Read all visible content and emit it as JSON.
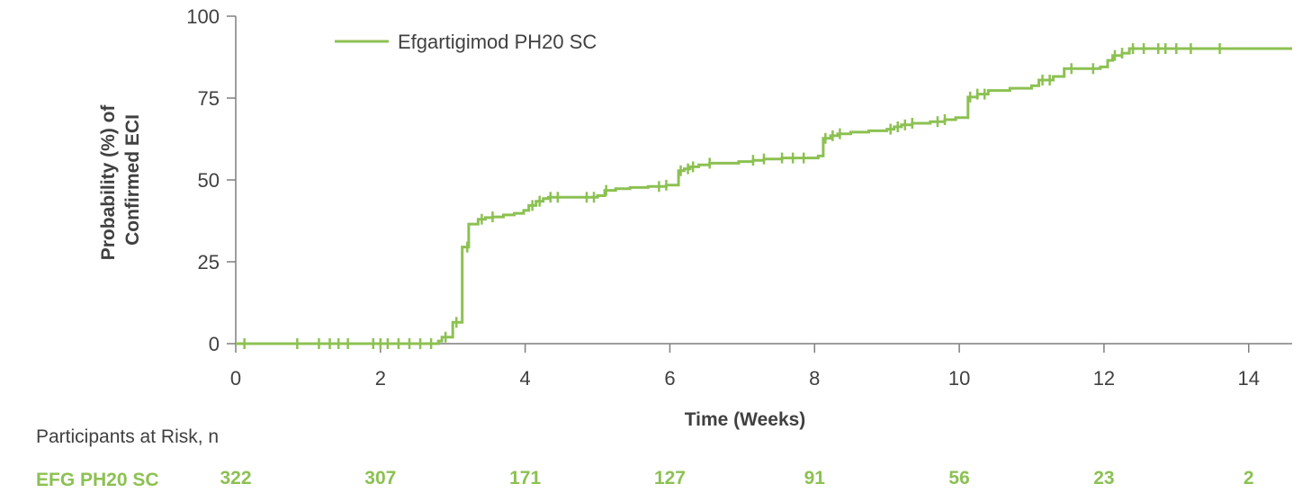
{
  "chart_data": {
    "type": "line",
    "subtype": "kaplan-meier-step",
    "title": "",
    "xlabel": "Time (Weeks)",
    "ylabel_lines": [
      "Probability (%) of",
      "Confirmed ECI"
    ],
    "xlim": [
      0,
      14.6
    ],
    "ylim": [
      0,
      100
    ],
    "xticks": [
      0,
      2,
      4,
      6,
      8,
      10,
      12,
      14
    ],
    "yticks": [
      0,
      25,
      50,
      75,
      100
    ],
    "grid": false,
    "legend_position": "top-left",
    "colors": {
      "series": "#8cc152",
      "text": "#404040",
      "axis": "#7f7f7f"
    },
    "series": [
      {
        "name": "Efgartigimod PH20 SC",
        "steps": [
          [
            0,
            0
          ],
          [
            2.8,
            0
          ],
          [
            2.8,
            0.8
          ],
          [
            2.85,
            0.8
          ],
          [
            2.85,
            2
          ],
          [
            3.0,
            2
          ],
          [
            3.0,
            6.5
          ],
          [
            3.13,
            6.5
          ],
          [
            3.13,
            29.5
          ],
          [
            3.22,
            29.5
          ],
          [
            3.22,
            36.5
          ],
          [
            3.35,
            36.5
          ],
          [
            3.35,
            38
          ],
          [
            3.45,
            38
          ],
          [
            3.45,
            38.5
          ],
          [
            3.55,
            38.5
          ],
          [
            3.55,
            38.7
          ],
          [
            3.7,
            38.7
          ],
          [
            3.7,
            39.3
          ],
          [
            3.85,
            39.3
          ],
          [
            3.85,
            39.8
          ],
          [
            3.98,
            39.8
          ],
          [
            3.98,
            40.7
          ],
          [
            4.05,
            40.7
          ],
          [
            4.05,
            42.2
          ],
          [
            4.15,
            42.2
          ],
          [
            4.15,
            43.5
          ],
          [
            4.25,
            43.5
          ],
          [
            4.25,
            44.3
          ],
          [
            4.32,
            44.3
          ],
          [
            4.32,
            44.7
          ],
          [
            5.0,
            44.7
          ],
          [
            5.0,
            45.2
          ],
          [
            5.1,
            45.2
          ],
          [
            5.1,
            46.8
          ],
          [
            5.25,
            46.8
          ],
          [
            5.25,
            47.3
          ],
          [
            5.45,
            47.3
          ],
          [
            5.45,
            47.7
          ],
          [
            5.7,
            47.7
          ],
          [
            5.7,
            48.0
          ],
          [
            5.95,
            48.0
          ],
          [
            5.95,
            48.4
          ],
          [
            6.12,
            48.4
          ],
          [
            6.12,
            52.8
          ],
          [
            6.2,
            52.8
          ],
          [
            6.2,
            53.4
          ],
          [
            6.28,
            53.4
          ],
          [
            6.28,
            54.0
          ],
          [
            6.4,
            54.0
          ],
          [
            6.4,
            54.6
          ],
          [
            6.55,
            54.6
          ],
          [
            6.55,
            55.1
          ],
          [
            6.95,
            55.1
          ],
          [
            6.95,
            55.6
          ],
          [
            7.15,
            55.6
          ],
          [
            7.15,
            56.0
          ],
          [
            7.3,
            56.0
          ],
          [
            7.3,
            56.4
          ],
          [
            7.55,
            56.4
          ],
          [
            7.55,
            56.7
          ],
          [
            8.05,
            56.7
          ],
          [
            8.05,
            57.3
          ],
          [
            8.12,
            57.3
          ],
          [
            8.12,
            62.7
          ],
          [
            8.22,
            62.7
          ],
          [
            8.22,
            63.5
          ],
          [
            8.32,
            63.5
          ],
          [
            8.32,
            64.1
          ],
          [
            8.5,
            64.1
          ],
          [
            8.5,
            64.6
          ],
          [
            8.75,
            64.6
          ],
          [
            8.75,
            65.0
          ],
          [
            9.0,
            65.0
          ],
          [
            9.0,
            65.5
          ],
          [
            9.1,
            65.5
          ],
          [
            9.1,
            66.2
          ],
          [
            9.2,
            66.2
          ],
          [
            9.2,
            66.8
          ],
          [
            9.35,
            66.8
          ],
          [
            9.35,
            67.3
          ],
          [
            9.6,
            67.3
          ],
          [
            9.6,
            67.8
          ],
          [
            9.8,
            67.8
          ],
          [
            9.8,
            68.4
          ],
          [
            9.95,
            68.4
          ],
          [
            9.95,
            69.0
          ],
          [
            10.12,
            69.0
          ],
          [
            10.12,
            75.3
          ],
          [
            10.25,
            75.3
          ],
          [
            10.25,
            76.2
          ],
          [
            10.4,
            76.2
          ],
          [
            10.4,
            77.3
          ],
          [
            10.7,
            77.3
          ],
          [
            10.7,
            78.0
          ],
          [
            11.0,
            78.0
          ],
          [
            11.0,
            78.8
          ],
          [
            11.1,
            78.8
          ],
          [
            11.1,
            80.5
          ],
          [
            11.3,
            80.5
          ],
          [
            11.3,
            81.6
          ],
          [
            11.45,
            81.6
          ],
          [
            11.45,
            84.0
          ],
          [
            11.95,
            84.0
          ],
          [
            11.95,
            84.5
          ],
          [
            12.05,
            84.5
          ],
          [
            12.05,
            86.5
          ],
          [
            12.12,
            86.5
          ],
          [
            12.12,
            88.0
          ],
          [
            12.25,
            88.0
          ],
          [
            12.25,
            88.7
          ],
          [
            12.35,
            88.7
          ],
          [
            12.35,
            90.1
          ],
          [
            14.6,
            90.1
          ]
        ],
        "censor_x": [
          0.12,
          0.85,
          1.15,
          1.3,
          1.42,
          1.55,
          1.9,
          2.0,
          2.1,
          2.25,
          2.4,
          2.55,
          2.7,
          2.9,
          3.05,
          3.2,
          3.4,
          3.55,
          4.1,
          4.2,
          4.35,
          4.45,
          4.85,
          4.95,
          5.12,
          5.85,
          5.95,
          6.15,
          6.25,
          6.32,
          6.55,
          7.15,
          7.3,
          7.55,
          7.7,
          7.85,
          8.15,
          8.25,
          8.35,
          9.05,
          9.15,
          9.25,
          9.35,
          9.7,
          9.8,
          10.15,
          10.25,
          10.35,
          11.15,
          11.25,
          11.55,
          11.85,
          12.15,
          12.25,
          12.4,
          12.55,
          12.75,
          12.85,
          13.0,
          13.2,
          13.6
        ]
      }
    ],
    "risk_table": {
      "title": "Participants at Risk, n",
      "row_label": "EFG PH20 SC",
      "x": [
        0,
        2,
        4,
        6,
        8,
        10,
        12,
        14
      ],
      "counts": [
        "322",
        "307",
        "171",
        "127",
        "91",
        "56",
        "23",
        "2"
      ]
    }
  }
}
